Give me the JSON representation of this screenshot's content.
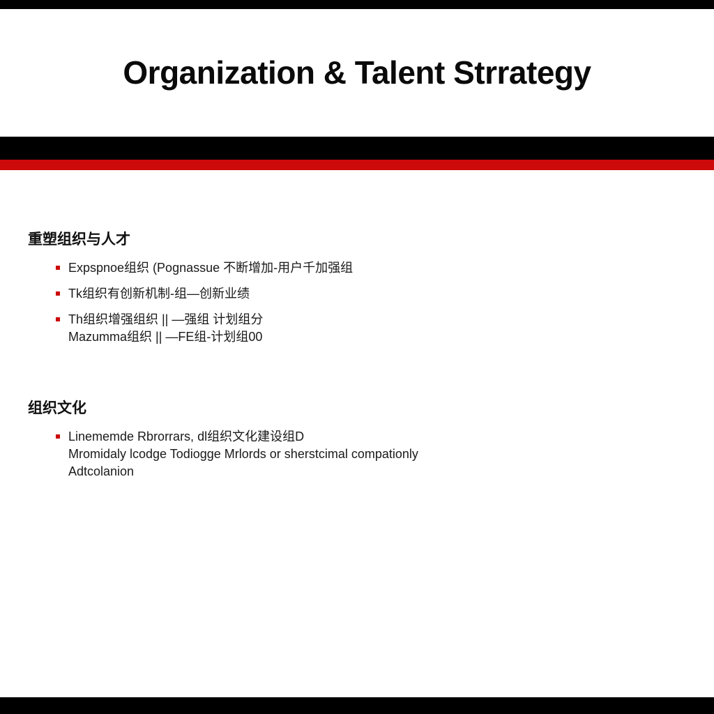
{
  "slide": {
    "title": "Organization & Talent Strrategy",
    "accent_color": "#cc0a0a",
    "band_color": "#000000"
  },
  "sections": [
    {
      "heading": "重塑组织与人才",
      "bullets": [
        {
          "lines": [
            "Expspnoe组织 (Pognassue 不断增加-用户千加强组"
          ]
        },
        {
          "lines": [
            "Tk组织有创新机制-组—创新业绩"
          ]
        },
        {
          "lines": [
            "Th组织增强组织 || —强组 计划组分",
            "Mazumma组织 || —FE组-计划组00"
          ]
        }
      ]
    },
    {
      "heading": "组织文化",
      "bullets": [
        {
          "lines": [
            "Linememde Rbrorrars, dl组织文化建设组D",
            "Mromidaly lcodge Todiogge Mrlords or sherstcimal compationly",
            "Adtcolanion"
          ]
        }
      ]
    }
  ]
}
